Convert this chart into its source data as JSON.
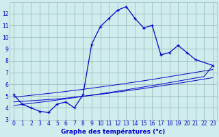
{
  "xlabel": "Graphe des températures (°c)",
  "hours": [
    0,
    1,
    2,
    3,
    4,
    5,
    6,
    7,
    8,
    9,
    10,
    11,
    12,
    13,
    14,
    15,
    16,
    17,
    18,
    19,
    20,
    21,
    22,
    23
  ],
  "temp_main": [
    5.1,
    4.3,
    4.0,
    3.7,
    3.6,
    4.3,
    4.5,
    4.0,
    5.1,
    9.4,
    10.9,
    11.6,
    12.3,
    12.6,
    11.6,
    10.8,
    11.0,
    8.5,
    8.7,
    9.3,
    8.7,
    8.1,
    null,
    7.6
  ],
  "temp_line1": [
    4.5,
    4.55,
    4.6,
    4.65,
    4.7,
    4.75,
    4.82,
    4.9,
    4.98,
    5.06,
    5.15,
    5.24,
    5.34,
    5.44,
    5.54,
    5.64,
    5.75,
    5.86,
    5.97,
    6.08,
    6.2,
    6.32,
    6.44,
    6.56
  ],
  "temp_line2": [
    4.9,
    4.98,
    5.06,
    5.14,
    5.22,
    5.3,
    5.39,
    5.48,
    5.57,
    5.67,
    5.77,
    5.87,
    5.97,
    6.08,
    6.19,
    6.3,
    6.41,
    6.53,
    6.65,
    6.77,
    6.89,
    7.01,
    7.13,
    7.25
  ],
  "temp_line3": [
    4.2,
    4.29,
    4.38,
    4.47,
    4.56,
    4.66,
    4.76,
    4.86,
    4.97,
    5.08,
    5.19,
    5.3,
    5.41,
    5.53,
    5.65,
    5.77,
    5.89,
    6.01,
    6.14,
    6.27,
    6.4,
    6.53,
    6.66,
    7.6
  ],
  "line_color": "#0000cc",
  "bg_color": "#d0ecec",
  "grid_color": "#99bbbb",
  "ylim": [
    3,
    13
  ],
  "xlim": [
    -0.5,
    23.5
  ],
  "yticks": [
    3,
    4,
    5,
    6,
    7,
    8,
    9,
    10,
    11,
    12
  ],
  "xticks": [
    0,
    1,
    2,
    3,
    4,
    5,
    6,
    7,
    8,
    9,
    10,
    11,
    12,
    13,
    14,
    15,
    16,
    17,
    18,
    19,
    20,
    21,
    22,
    23
  ]
}
